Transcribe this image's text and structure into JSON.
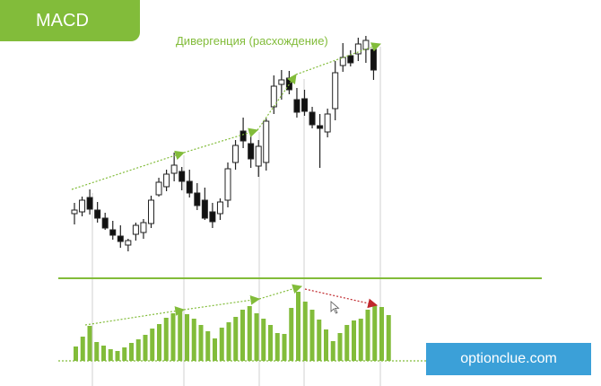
{
  "badge": {
    "label": "MACD"
  },
  "annotation": {
    "divergence": "Дивергенция (расхождение)"
  },
  "watermark": {
    "text": "optionclue.com"
  },
  "colors": {
    "accent": "#82bc3a",
    "bearish_divergence": "#c0282d",
    "bullish_candle": "#ffffff",
    "bearish_candle": "#111111",
    "watermark_bg": "#3ba0d8"
  },
  "chart_data": [
    {
      "type": "candlestick",
      "candles": [
        {
          "o": 61,
          "h": 73,
          "l": 49,
          "c": 65
        },
        {
          "o": 63,
          "h": 80,
          "l": 58,
          "c": 76
        },
        {
          "o": 79,
          "h": 88,
          "l": 60,
          "c": 66
        },
        {
          "o": 65,
          "h": 74,
          "l": 51,
          "c": 56
        },
        {
          "o": 56,
          "h": 62,
          "l": 43,
          "c": 45
        },
        {
          "o": 43,
          "h": 53,
          "l": 32,
          "c": 37
        },
        {
          "o": 36,
          "h": 48,
          "l": 23,
          "c": 30
        },
        {
          "o": 26,
          "h": 33,
          "l": 19,
          "c": 31
        },
        {
          "o": 38,
          "h": 51,
          "l": 31,
          "c": 48
        },
        {
          "o": 40,
          "h": 55,
          "l": 33,
          "c": 51
        },
        {
          "o": 50,
          "h": 81,
          "l": 45,
          "c": 76
        },
        {
          "o": 82,
          "h": 101,
          "l": 80,
          "c": 96
        },
        {
          "o": 91,
          "h": 110,
          "l": 86,
          "c": 105
        },
        {
          "o": 106,
          "h": 129,
          "l": 97,
          "c": 115
        },
        {
          "o": 108,
          "h": 113,
          "l": 87,
          "c": 97
        },
        {
          "o": 97,
          "h": 110,
          "l": 79,
          "c": 84
        },
        {
          "o": 84,
          "h": 95,
          "l": 65,
          "c": 70
        },
        {
          "o": 76,
          "h": 90,
          "l": 54,
          "c": 56
        },
        {
          "o": 63,
          "h": 73,
          "l": 45,
          "c": 52
        },
        {
          "o": 61,
          "h": 78,
          "l": 54,
          "c": 74
        },
        {
          "o": 76,
          "h": 118,
          "l": 68,
          "c": 111
        },
        {
          "o": 118,
          "h": 143,
          "l": 110,
          "c": 137
        },
        {
          "o": 153,
          "h": 168,
          "l": 134,
          "c": 142
        },
        {
          "o": 139,
          "h": 154,
          "l": 112,
          "c": 122
        },
        {
          "o": 114,
          "h": 143,
          "l": 102,
          "c": 136
        },
        {
          "o": 118,
          "h": 167,
          "l": 109,
          "c": 164
        },
        {
          "o": 180,
          "h": 215,
          "l": 172,
          "c": 203
        },
        {
          "o": 205,
          "h": 221,
          "l": 188,
          "c": 210
        },
        {
          "o": 212,
          "h": 220,
          "l": 194,
          "c": 199
        },
        {
          "o": 188,
          "h": 201,
          "l": 168,
          "c": 174
        },
        {
          "o": 189,
          "h": 199,
          "l": 170,
          "c": 175
        },
        {
          "o": 174,
          "h": 180,
          "l": 156,
          "c": 160
        },
        {
          "o": 159,
          "h": 172,
          "l": 112,
          "c": 156
        },
        {
          "o": 152,
          "h": 178,
          "l": 146,
          "c": 172
        },
        {
          "o": 178,
          "h": 231,
          "l": 165,
          "c": 218
        },
        {
          "o": 226,
          "h": 251,
          "l": 219,
          "c": 235
        },
        {
          "o": 237,
          "h": 243,
          "l": 225,
          "c": 229
        },
        {
          "o": 239,
          "h": 257,
          "l": 231,
          "c": 250
        },
        {
          "o": 244,
          "h": 259,
          "l": 229,
          "c": 254
        },
        {
          "o": 244,
          "h": 249,
          "l": 210,
          "c": 221
        }
      ]
    },
    {
      "type": "bar",
      "values": [
        16,
        27,
        39,
        21,
        17,
        13,
        11,
        15,
        20,
        24,
        29,
        36,
        41,
        48,
        53,
        56,
        52,
        47,
        40,
        33,
        25,
        37,
        43,
        49,
        57,
        61,
        53,
        47,
        40,
        31,
        30,
        59,
        77,
        66,
        57,
        46,
        35,
        22,
        31,
        40,
        45,
        47,
        57,
        62,
        60,
        51
      ]
    }
  ]
}
